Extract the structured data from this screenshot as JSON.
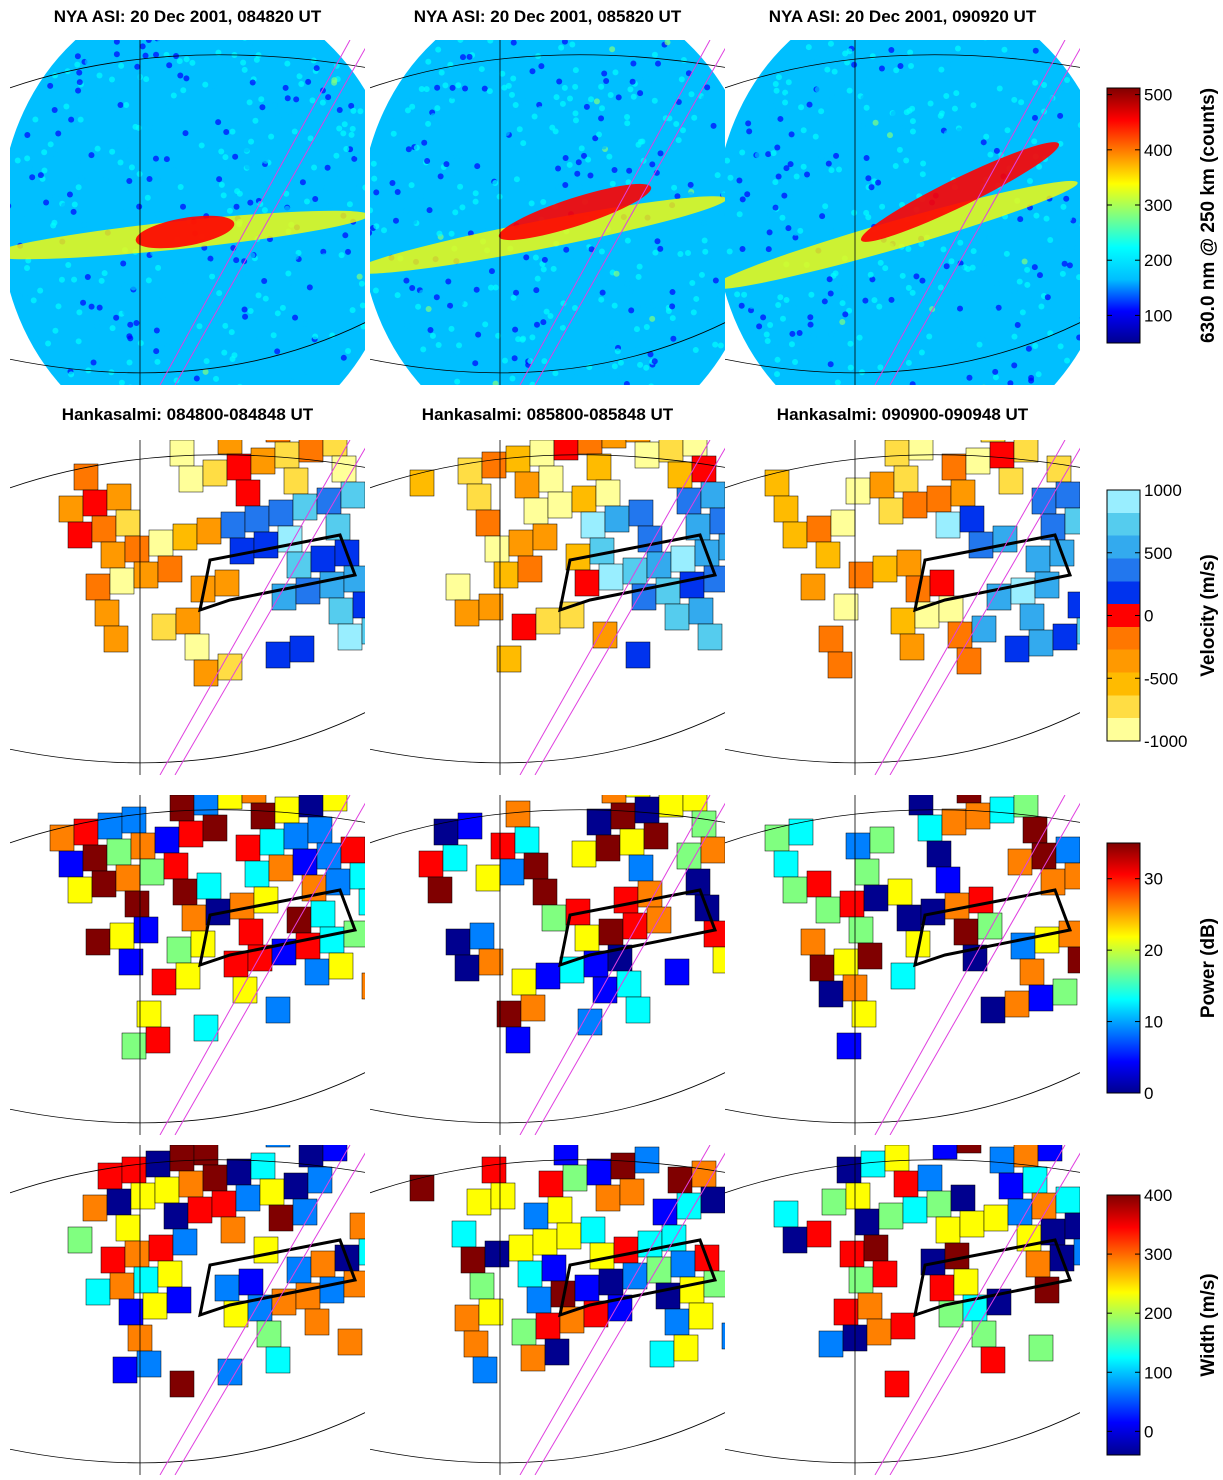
{
  "asi_titles": [
    "NYA ASI: 20 Dec 2001, 084820 UT",
    "NYA ASI: 20 Dec 2001, 085820 UT",
    "NYA ASI: 20 Dec 2001, 090920 UT"
  ],
  "radar_titles": [
    "Hankasalmi: 084800-084848 UT",
    "Hankasalmi: 085800-085848 UT",
    "Hankasalmi: 090900-090948 UT"
  ],
  "colorbars": [
    {
      "label": "630.0 nm @ 250 km (counts)",
      "lim": [
        50,
        512
      ],
      "ticks": [
        100,
        200,
        300,
        400,
        500
      ],
      "discrete": false,
      "colors": [
        "#00008f",
        "#0000ff",
        "#00bfff",
        "#00ffff",
        "#80ff80",
        "#ffff00",
        "#ff8000",
        "#ff0000",
        "#800000"
      ]
    },
    {
      "label": "Velocity (m/s)",
      "lim": [
        -1000,
        1000
      ],
      "ticks": [
        -1000,
        -500,
        0,
        500,
        1000
      ],
      "discrete": true,
      "colors": [
        "#ffff99",
        "#ffdd44",
        "#ffbb00",
        "#ff9900",
        "#ff7700",
        "#ff0000",
        "#0033ee",
        "#2277ee",
        "#33aaee",
        "#55ccee",
        "#99eeff"
      ]
    },
    {
      "label": "Power (dB)",
      "lim": [
        0,
        35
      ],
      "ticks": [
        0,
        10,
        20,
        30
      ],
      "discrete": false,
      "colors": [
        "#00008f",
        "#0000ff",
        "#0080ff",
        "#00ffff",
        "#80ff80",
        "#ffff00",
        "#ff8000",
        "#ff0000",
        "#800000"
      ]
    },
    {
      "label": "Width (m/s)",
      "lim": [
        -40,
        400
      ],
      "ticks": [
        0,
        100,
        200,
        300,
        400
      ],
      "discrete": false,
      "colors": [
        "#00008f",
        "#0000ff",
        "#0080ff",
        "#00ffff",
        "#80ff80",
        "#ffff00",
        "#ff8000",
        "#ff0000",
        "#800000"
      ]
    }
  ]
}
